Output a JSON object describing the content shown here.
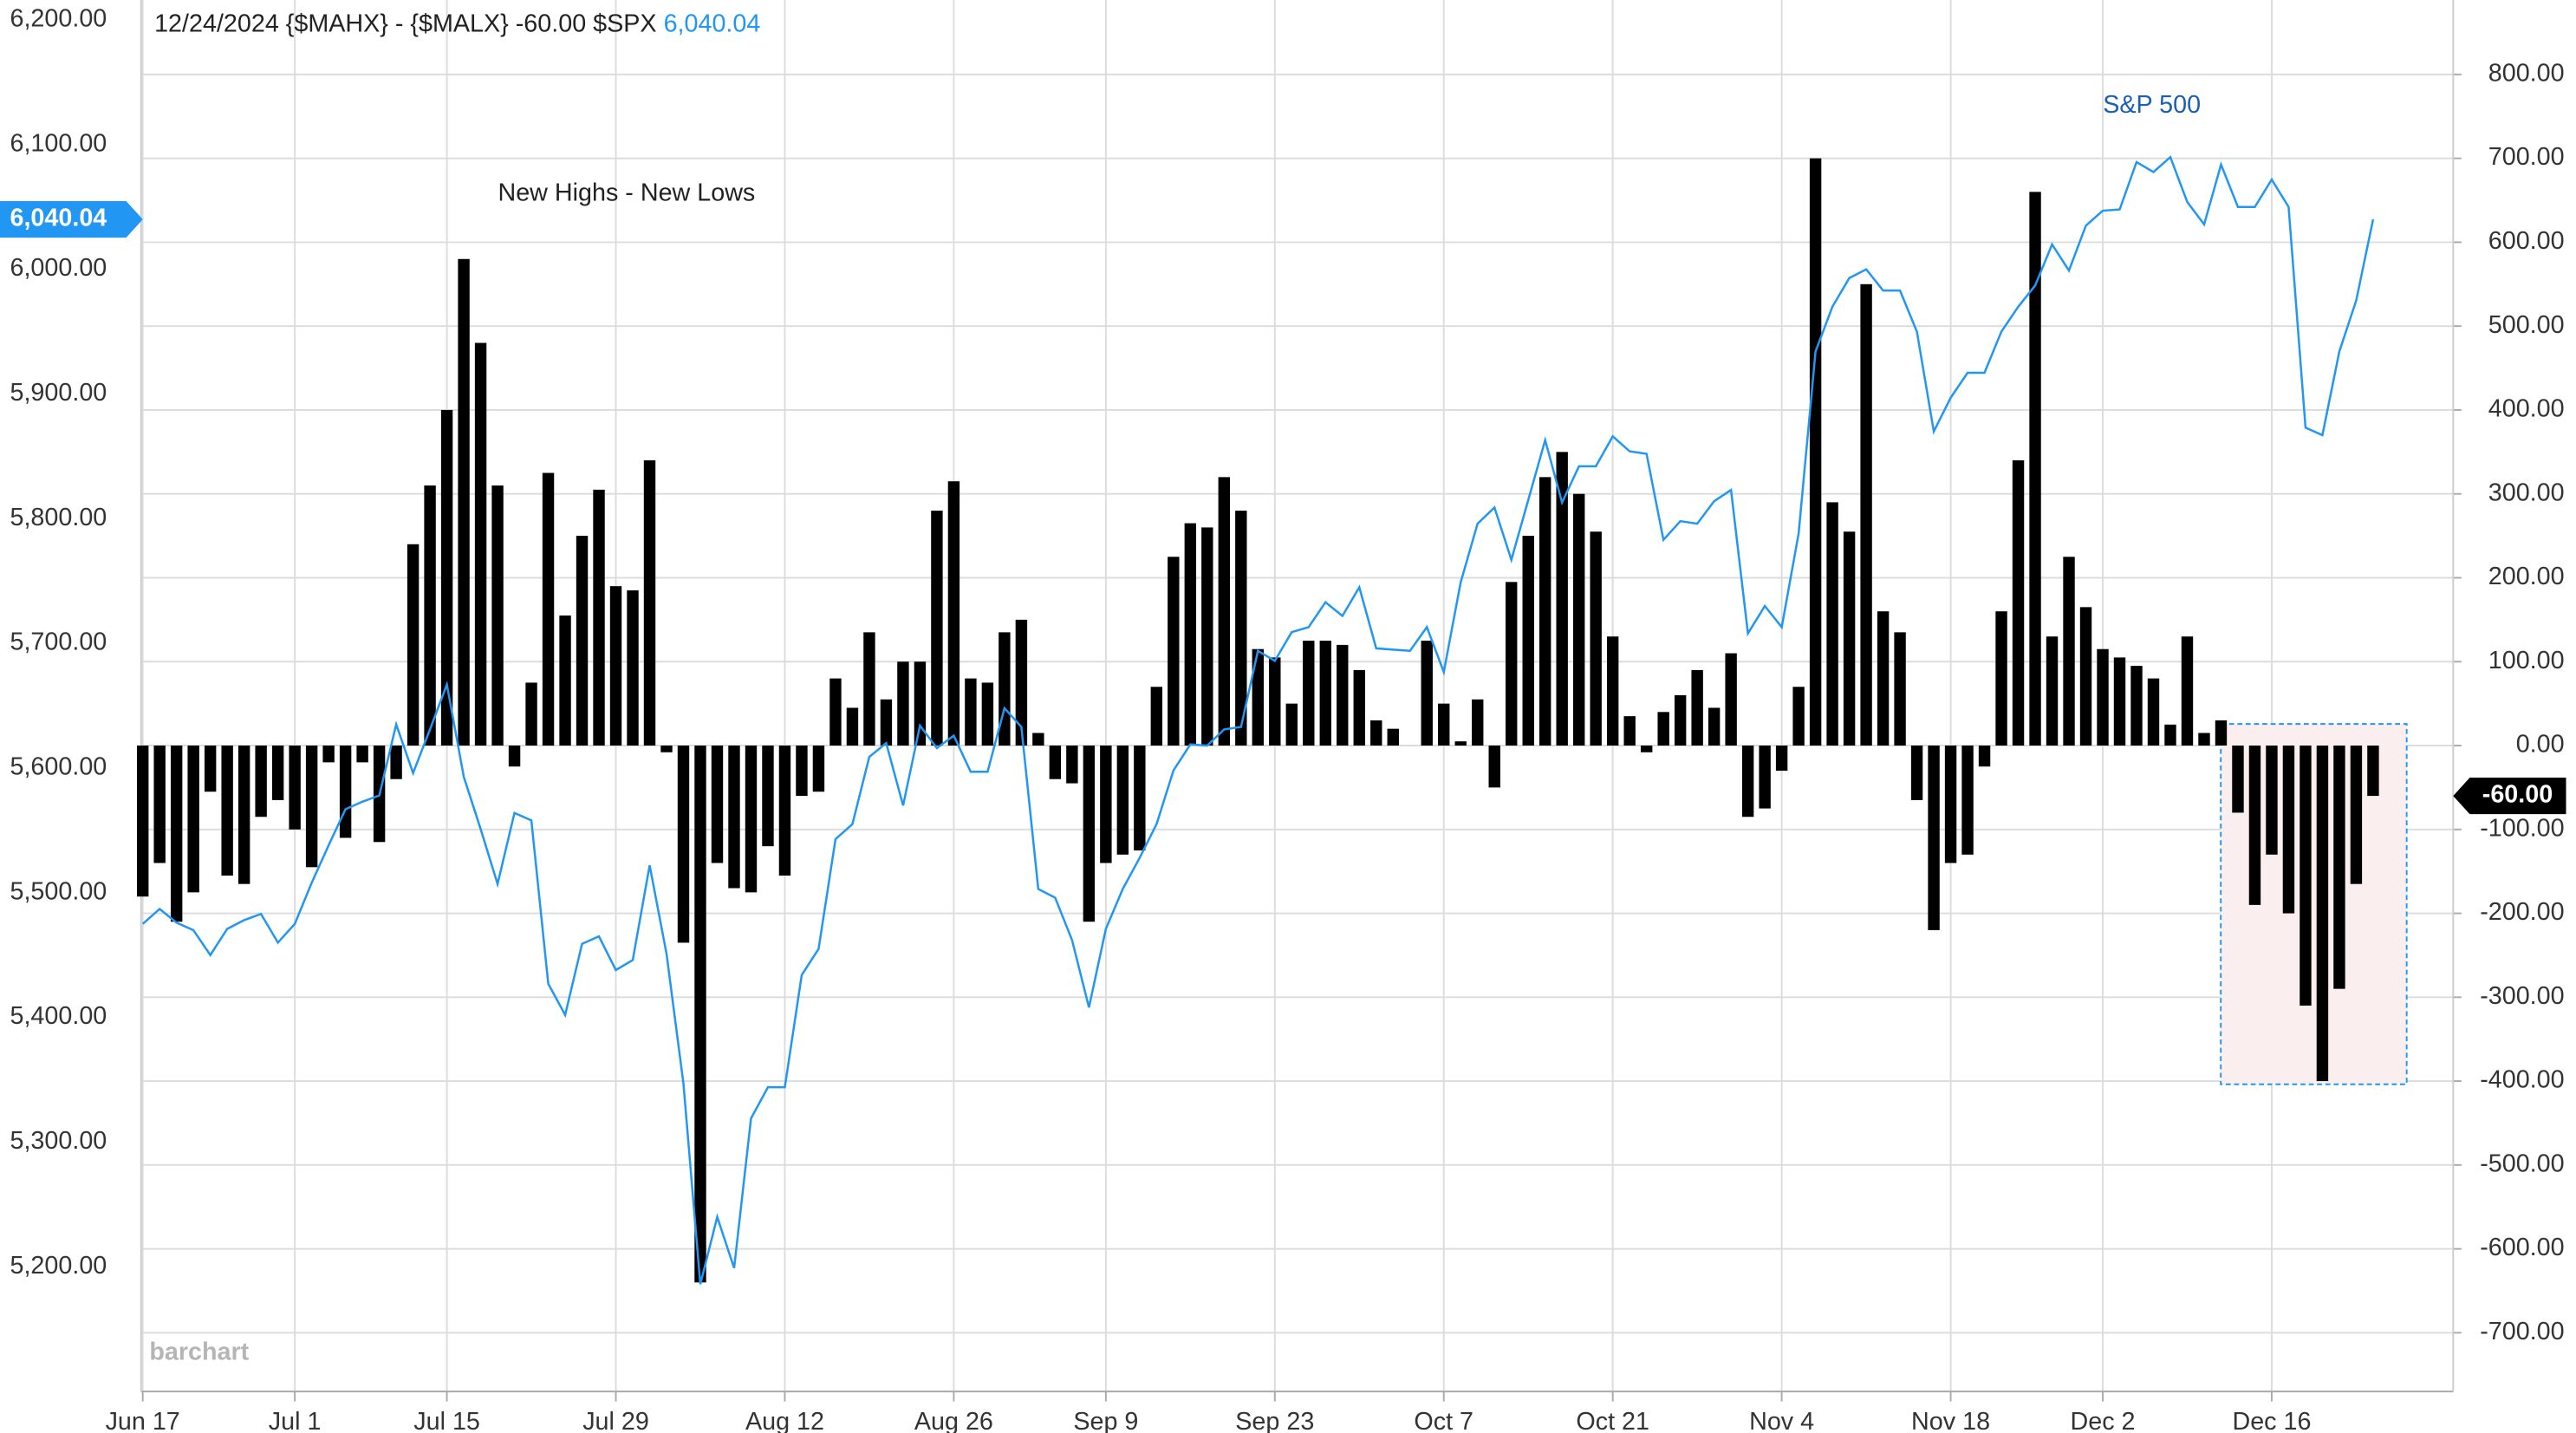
{
  "chart_data": {
    "type": "bar",
    "title": "12/24/2024 {$MAHX} - {$MALX} -60.00 $SPX",
    "title_value": "6,040.04",
    "watermark": "barchart",
    "grid": true,
    "categories": [
      "Jun 17",
      null,
      null,
      null,
      null,
      null,
      null,
      null,
      null,
      "Jul 1",
      null,
      null,
      null,
      null,
      null,
      null,
      null,
      null,
      "Jul 15",
      null,
      null,
      null,
      null,
      null,
      null,
      null,
      null,
      null,
      "Jul 29",
      null,
      null,
      null,
      null,
      null,
      null,
      null,
      null,
      null,
      "Aug 12",
      null,
      null,
      null,
      null,
      null,
      null,
      null,
      null,
      null,
      "Aug 26",
      null,
      null,
      null,
      null,
      null,
      null,
      null,
      null,
      "Sep 9",
      null,
      null,
      null,
      null,
      null,
      null,
      null,
      null,
      null,
      "Sep 23",
      null,
      null,
      null,
      null,
      null,
      null,
      null,
      null,
      null,
      "Oct 7",
      null,
      null,
      null,
      null,
      null,
      null,
      null,
      null,
      null,
      "Oct 21",
      null,
      null,
      null,
      null,
      null,
      null,
      null,
      null,
      null,
      "Nov 4",
      null,
      null,
      null,
      null,
      null,
      null,
      null,
      null,
      null,
      "Nov 18",
      null,
      null,
      null,
      null,
      null,
      null,
      null,
      null,
      "Dec 2",
      null,
      null,
      null,
      null,
      null,
      null,
      null,
      null,
      null,
      "Dec 16",
      null,
      null,
      null,
      null,
      null,
      null
    ],
    "ylim": [
      5100,
      6200
    ],
    "yticks": [
      {
        "value": 5200,
        "label": "5,200.00"
      },
      {
        "value": 5300,
        "label": "5,300.00"
      },
      {
        "value": 5400,
        "label": "5,400.00"
      },
      {
        "value": 5500,
        "label": "5,500.00"
      },
      {
        "value": 5600,
        "label": "5,600.00"
      },
      {
        "value": 5700,
        "label": "5,700.00"
      },
      {
        "value": 5800,
        "label": "5,800.00"
      },
      {
        "value": 5900,
        "label": "5,900.00"
      },
      {
        "value": 6000,
        "label": "6,000.00"
      },
      {
        "value": 6100,
        "label": "6,100.00"
      },
      {
        "value": 6200,
        "label": "6,200.00"
      }
    ],
    "y2lim": [
      -770,
      865
    ],
    "y2ticks": [
      {
        "value": -700,
        "label": "-700.00"
      },
      {
        "value": -600,
        "label": "-600.00"
      },
      {
        "value": -500,
        "label": "-500.00"
      },
      {
        "value": -400,
        "label": "-400.00"
      },
      {
        "value": -300,
        "label": "-300.00"
      },
      {
        "value": -200,
        "label": "-200.00"
      },
      {
        "value": -100,
        "label": "-100.00"
      },
      {
        "value": 0,
        "label": "0.00"
      },
      {
        "value": 100,
        "label": "100.00"
      },
      {
        "value": 200,
        "label": "200.00"
      },
      {
        "value": 300,
        "label": "300.00"
      },
      {
        "value": 400,
        "label": "400.00"
      },
      {
        "value": 500,
        "label": "500.00"
      },
      {
        "value": 600,
        "label": "600.00"
      },
      {
        "value": 700,
        "label": "700.00"
      },
      {
        "value": 800,
        "label": "800.00"
      }
    ],
    "series": [
      {
        "name": "New Highs - New Lows",
        "type": "bar",
        "axis": "y2",
        "color": "#000000",
        "last_value_label": "-60.00",
        "values": [
          -180,
          -140,
          -210,
          -175,
          -55,
          -155,
          -165,
          -85,
          -65,
          -100,
          -145,
          -20,
          -110,
          -20,
          -115,
          -40,
          240,
          310,
          400,
          580,
          480,
          310,
          -25,
          75,
          325,
          155,
          250,
          305,
          190,
          185,
          340,
          -8,
          -235,
          -640,
          -140,
          -170,
          -175,
          -120,
          -155,
          -60,
          -55,
          80,
          45,
          135,
          55,
          100,
          100,
          280,
          315,
          80,
          75,
          135,
          150,
          15,
          -40,
          -45,
          -210,
          -140,
          -130,
          -125,
          70,
          225,
          265,
          260,
          320,
          280,
          115,
          105,
          50,
          125,
          125,
          120,
          90,
          30,
          20,
          0,
          125,
          50,
          5,
          55,
          -50,
          195,
          250,
          320,
          350,
          300,
          255,
          130,
          35,
          -8,
          40,
          60,
          90,
          45,
          110,
          -85,
          -75,
          -30,
          70,
          700,
          290,
          255,
          550,
          160,
          135,
          -65,
          -220,
          -140,
          -130,
          -25,
          160,
          340,
          660,
          130,
          225,
          165,
          115,
          105,
          95,
          80,
          25,
          130,
          15,
          30,
          -80,
          -190,
          -130,
          -200,
          -310,
          -400,
          -290,
          -165,
          -60
        ]
      },
      {
        "name": "S&P 500",
        "type": "line",
        "color": "#2196f3",
        "last_value_label": "6,040.04",
        "values": [
          5475,
          5487,
          5476,
          5470,
          5450,
          5471,
          5478,
          5483,
          5460,
          5475,
          5508,
          5538,
          5567,
          5573,
          5578,
          5635,
          5596,
          5631,
          5667,
          5593,
          5551,
          5507,
          5564,
          5558,
          5427,
          5402,
          5459,
          5465,
          5438,
          5446,
          5522,
          5451,
          5347,
          5186,
          5240,
          5199,
          5319,
          5344,
          5344,
          5434,
          5455,
          5543,
          5555,
          5609,
          5620,
          5570,
          5634,
          5616,
          5626,
          5597,
          5597,
          5648,
          5633,
          5503,
          5496,
          5462,
          5408,
          5471,
          5503,
          5528,
          5555,
          5598,
          5619,
          5618,
          5631,
          5633,
          5694,
          5686,
          5709,
          5713,
          5733,
          5722,
          5745,
          5696,
          5695,
          5694,
          5713,
          5677,
          5749,
          5796,
          5809,
          5767,
          5815,
          5863,
          5813,
          5842,
          5842,
          5866,
          5854,
          5852,
          5783,
          5798,
          5796,
          5814,
          5823,
          5708,
          5730,
          5713,
          5788,
          5934,
          5970,
          5993,
          6000,
          5983,
          5983,
          5950,
          5870,
          5897,
          5917,
          5917,
          5950,
          5970,
          5987,
          6020,
          5999,
          6035,
          6047,
          6048,
          6086,
          6078,
          6090,
          6054,
          6036,
          6084,
          6050,
          6050,
          6072,
          6050,
          5873,
          5867,
          5934,
          5975,
          6040.04
        ]
      }
    ]
  }
}
